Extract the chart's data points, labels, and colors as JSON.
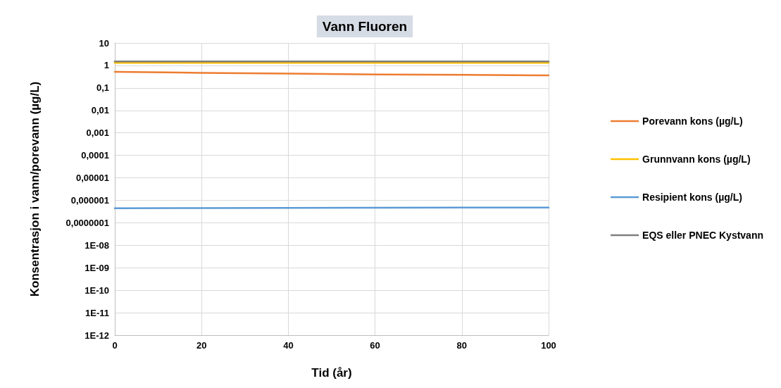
{
  "chart_data": {
    "type": "line",
    "title": "Vann Fluoren",
    "xlabel": "Tid (år)",
    "ylabel": "Konsentrasjon i vann/porevann (µg/L)",
    "log": "y",
    "grid": true,
    "legend": "right",
    "marker": "none",
    "line_style": "solid",
    "x": [
      0,
      20,
      40,
      60,
      80,
      100
    ],
    "xlim": [
      0,
      100
    ],
    "xticks": [
      0,
      20,
      40,
      60,
      80,
      100
    ],
    "ylim": [
      1e-12,
      10
    ],
    "yticks": [
      {
        "value": 10,
        "label": "10"
      },
      {
        "value": 1,
        "label": "1"
      },
      {
        "value": 0.1,
        "label": "0,1"
      },
      {
        "value": 0.01,
        "label": "0,01"
      },
      {
        "value": 0.001,
        "label": "0,001"
      },
      {
        "value": 0.0001,
        "label": "0,0001"
      },
      {
        "value": 1e-05,
        "label": "0,00001"
      },
      {
        "value": 1e-06,
        "label": "0,000001"
      },
      {
        "value": 1e-07,
        "label": "0,0000001"
      },
      {
        "value": 1e-08,
        "label": "1E-08"
      },
      {
        "value": 1e-09,
        "label": "1E-09"
      },
      {
        "value": 1e-10,
        "label": "1E-10"
      },
      {
        "value": 1e-11,
        "label": "1E-11"
      },
      {
        "value": 1e-12,
        "label": "1E-12"
      }
    ],
    "series": [
      {
        "name": "Porevann kons (µg/L)",
        "color": "#ed7d31",
        "values": [
          0.52,
          0.47,
          0.43,
          0.4,
          0.38,
          0.36
        ]
      },
      {
        "name": "Grunnvann kons (µg/L)",
        "color": "#ffc000",
        "values": [
          1.3,
          1.3,
          1.3,
          1.3,
          1.3,
          1.3
        ]
      },
      {
        "name": "Resipient kons (µg/L)",
        "color": "#5b9bd5",
        "values": [
          4.4e-07,
          4.5e-07,
          4.6e-07,
          4.7e-07,
          4.8e-07,
          4.8e-07
        ]
      },
      {
        "name": "EQS eller PNEC Kystvann",
        "color": "#7f7f7f",
        "values": [
          1.5,
          1.5,
          1.5,
          1.5,
          1.5,
          1.5
        ]
      }
    ]
  }
}
